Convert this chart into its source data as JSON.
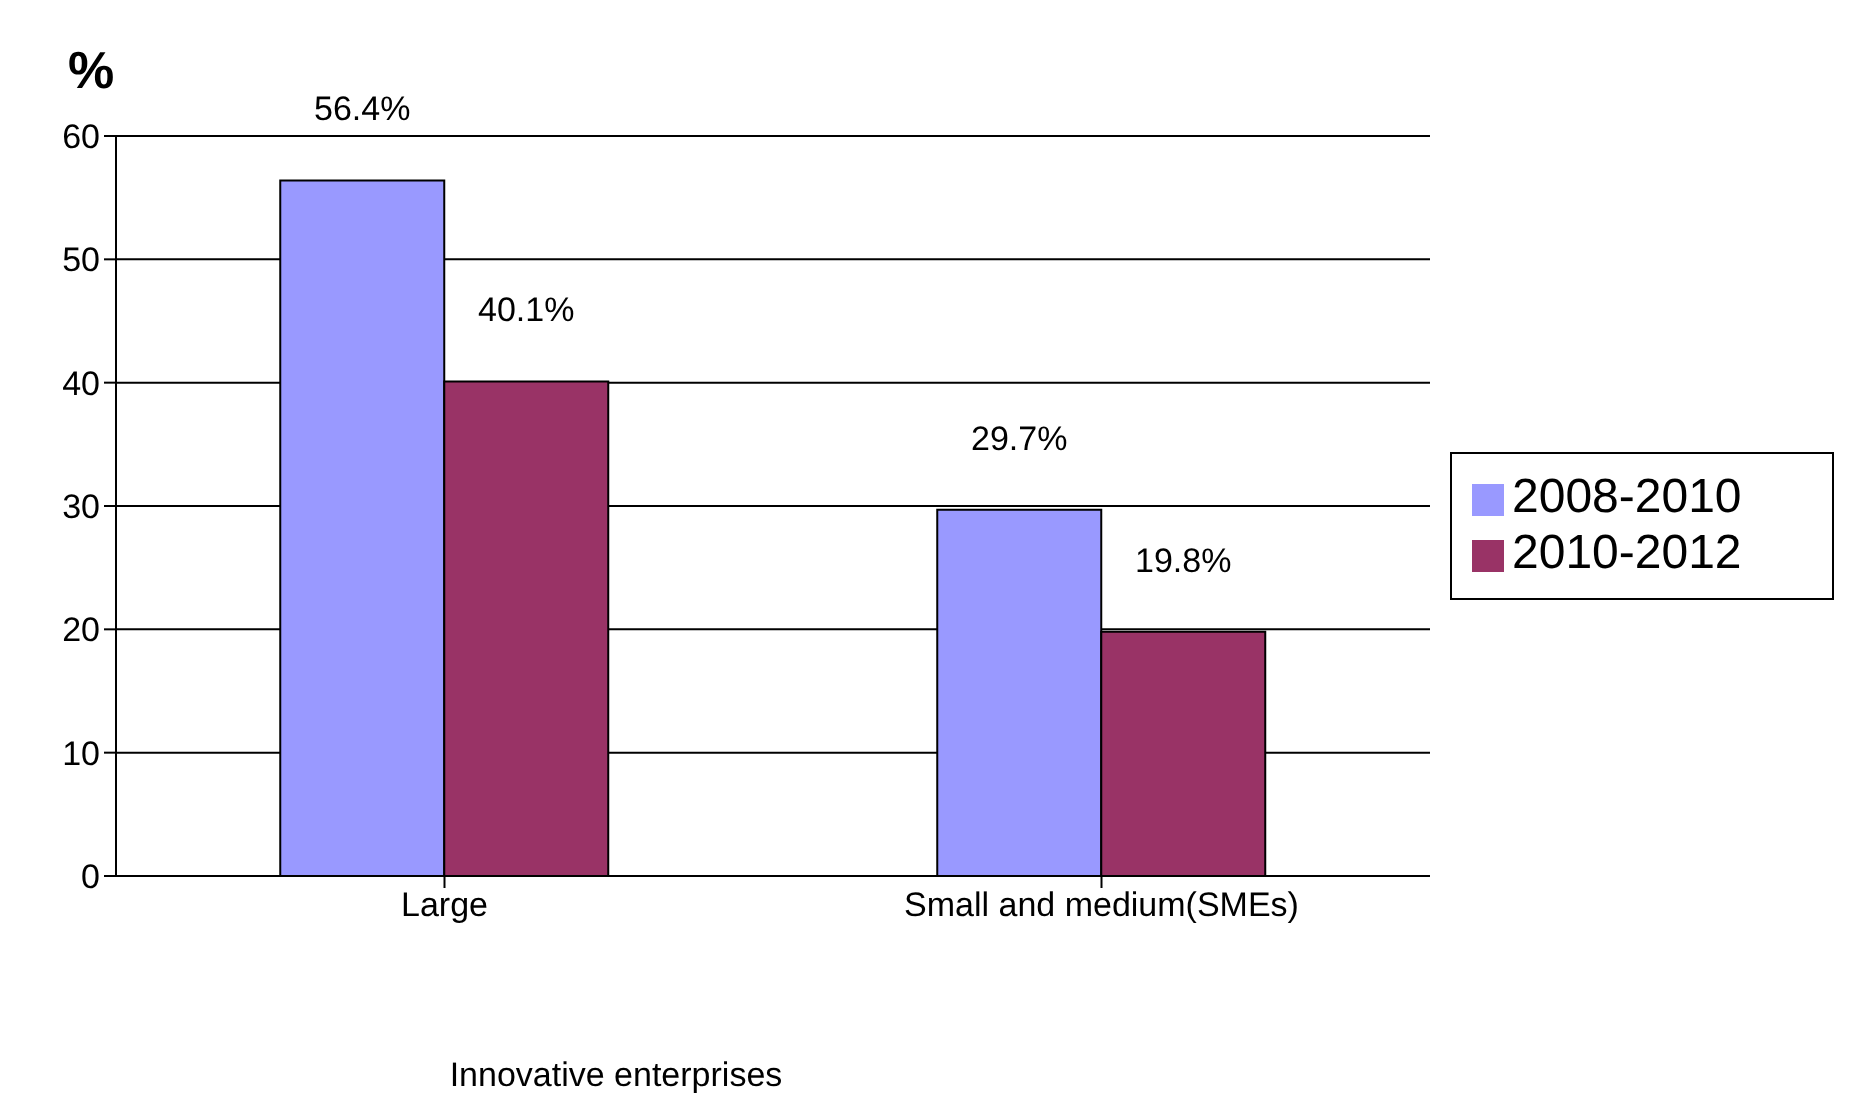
{
  "chart_data": {
    "type": "bar",
    "ylabel": "%",
    "xlabel": "Innovative enterprises",
    "categories": [
      "Large",
      "Small and medium(SMEs)"
    ],
    "series": [
      {
        "name": "2008-2010",
        "color": "#9999ff",
        "values": [
          56.4,
          29.7
        ],
        "value_labels": [
          "56.4%",
          "29.7%"
        ]
      },
      {
        "name": "2010-2012",
        "color": "#993366",
        "values": [
          40.1,
          19.8
        ],
        "value_labels": [
          "40.1%",
          "19.8%"
        ]
      }
    ],
    "ylim": [
      0,
      60
    ],
    "yticks": [
      0,
      10,
      20,
      30,
      40,
      50,
      60
    ],
    "grid": "y",
    "legend": "right"
  }
}
